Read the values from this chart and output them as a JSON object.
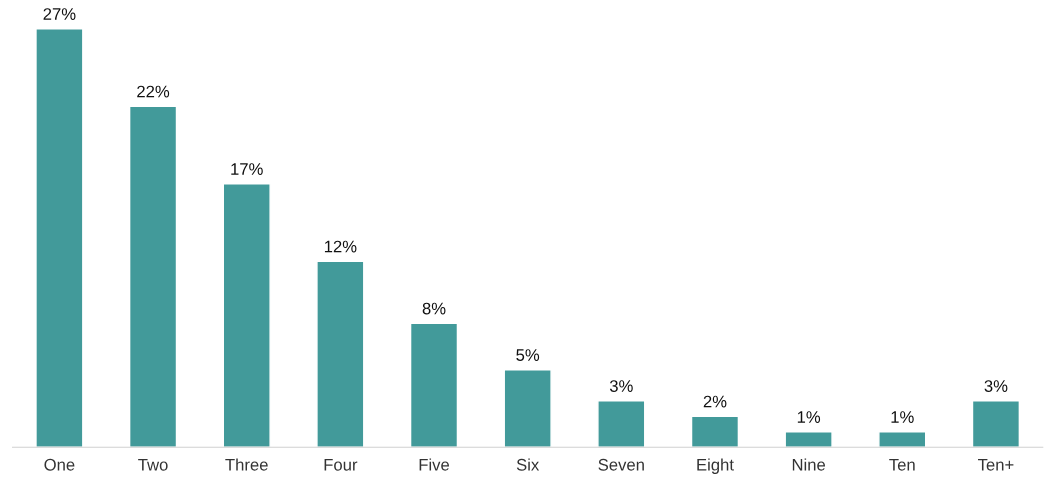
{
  "chart_data": {
    "type": "bar",
    "categories": [
      "One",
      "Two",
      "Three",
      "Four",
      "Five",
      "Six",
      "Seven",
      "Eight",
      "Nine",
      "Ten",
      "Ten+"
    ],
    "values": [
      27,
      22,
      17,
      12,
      8,
      5,
      3,
      2,
      1,
      1,
      3
    ],
    "value_labels": [
      "27%",
      "22%",
      "17%",
      "12%",
      "8%",
      "5%",
      "3%",
      "2%",
      "1%",
      "1%",
      "3%"
    ],
    "color": "#429a9a",
    "grid": false,
    "legend": false
  }
}
